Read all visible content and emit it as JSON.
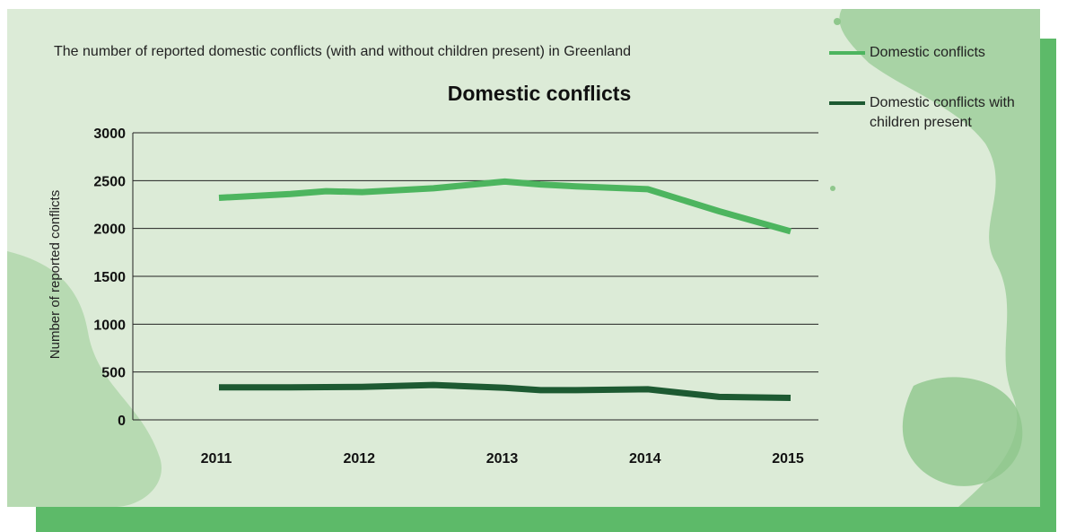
{
  "subtitle": "The number of reported domestic conflicts (with and without children present) in Greenland",
  "chart_data": {
    "type": "line",
    "title": "Domestic conflicts",
    "xlabel": "",
    "ylabel": "Number of reported conflicts",
    "x_ticks": [
      "2011",
      "2012",
      "2013",
      "2014",
      "2015"
    ],
    "y_ticks": [
      "0",
      "500",
      "1000",
      "1500",
      "2000",
      "2500",
      "3000"
    ],
    "ylim": [
      0,
      3000
    ],
    "grid": true,
    "legend_position": "top-right",
    "series": [
      {
        "name": "Domestic conflicts",
        "color": "#4db55f",
        "x": [
          2011.0,
          2011.5,
          2011.75,
          2012.0,
          2012.5,
          2013.0,
          2013.25,
          2013.5,
          2014.0,
          2014.5,
          2015.0
        ],
        "values": [
          2320,
          2360,
          2390,
          2380,
          2420,
          2490,
          2460,
          2440,
          2410,
          2180,
          1970
        ]
      },
      {
        "name": "Domestic conflicts with children present",
        "color": "#1d5a32",
        "x": [
          2011.0,
          2011.5,
          2012.0,
          2012.5,
          2013.0,
          2013.25,
          2013.5,
          2014.0,
          2014.5,
          2015.0
        ],
        "values": [
          340,
          340,
          345,
          365,
          335,
          310,
          310,
          320,
          240,
          230
        ]
      }
    ]
  },
  "legend": [
    {
      "label": "Domestic conflicts",
      "color": "#4db55f"
    },
    {
      "label": "Domestic conflicts with children present",
      "color": "#1d5a32"
    }
  ]
}
